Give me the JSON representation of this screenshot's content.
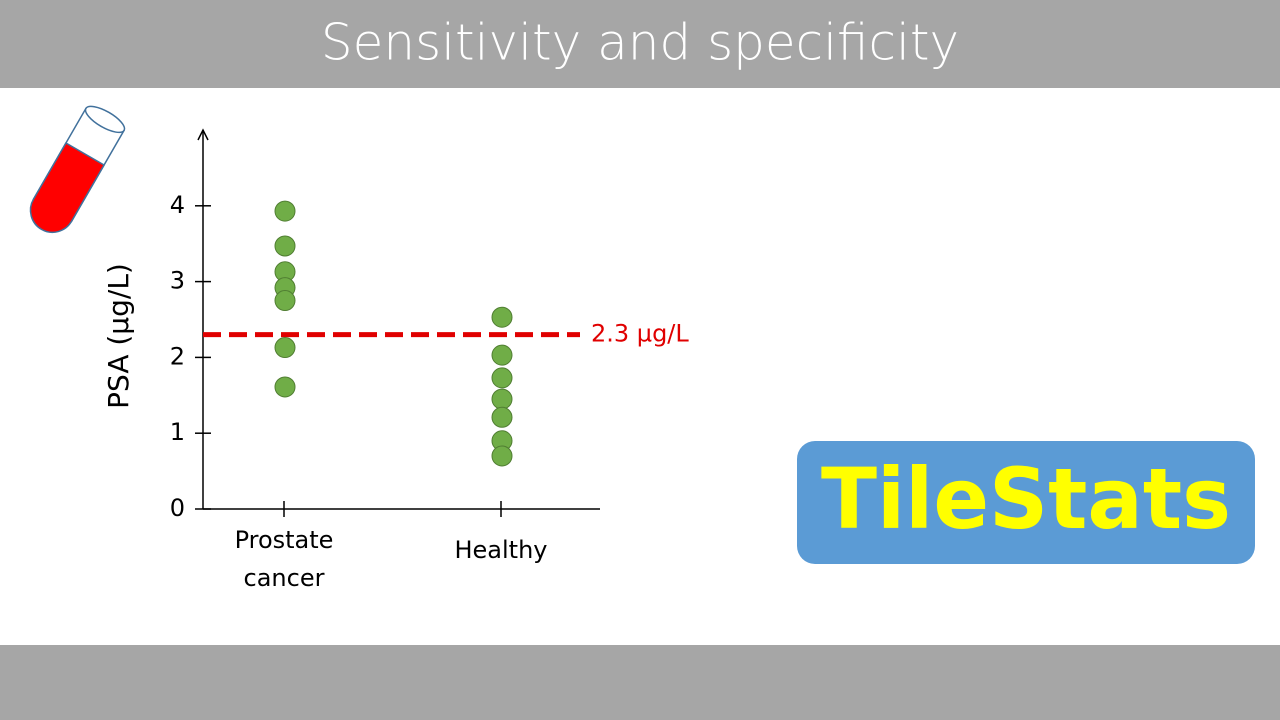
{
  "title": "Sensitivity and specificity",
  "logo": "TileStats",
  "chart_data": {
    "type": "strip",
    "y_label": "PSA (µg/L)",
    "categories": [
      "Prostate cancer",
      "Healthy"
    ],
    "values": [
      [
        3.93,
        3.47,
        3.13,
        2.92,
        2.75,
        2.13,
        1.61
      ],
      [
        2.53,
        2.03,
        1.73,
        1.45,
        1.21,
        0.9,
        0.7
      ]
    ],
    "color": "#70ad47",
    "ylim": [
      0,
      5
    ],
    "yticks": [
      0,
      1,
      2,
      3,
      4
    ],
    "threshold": {
      "value": 2.3,
      "label": "2.3 µg/L",
      "color": "#e00000"
    }
  }
}
